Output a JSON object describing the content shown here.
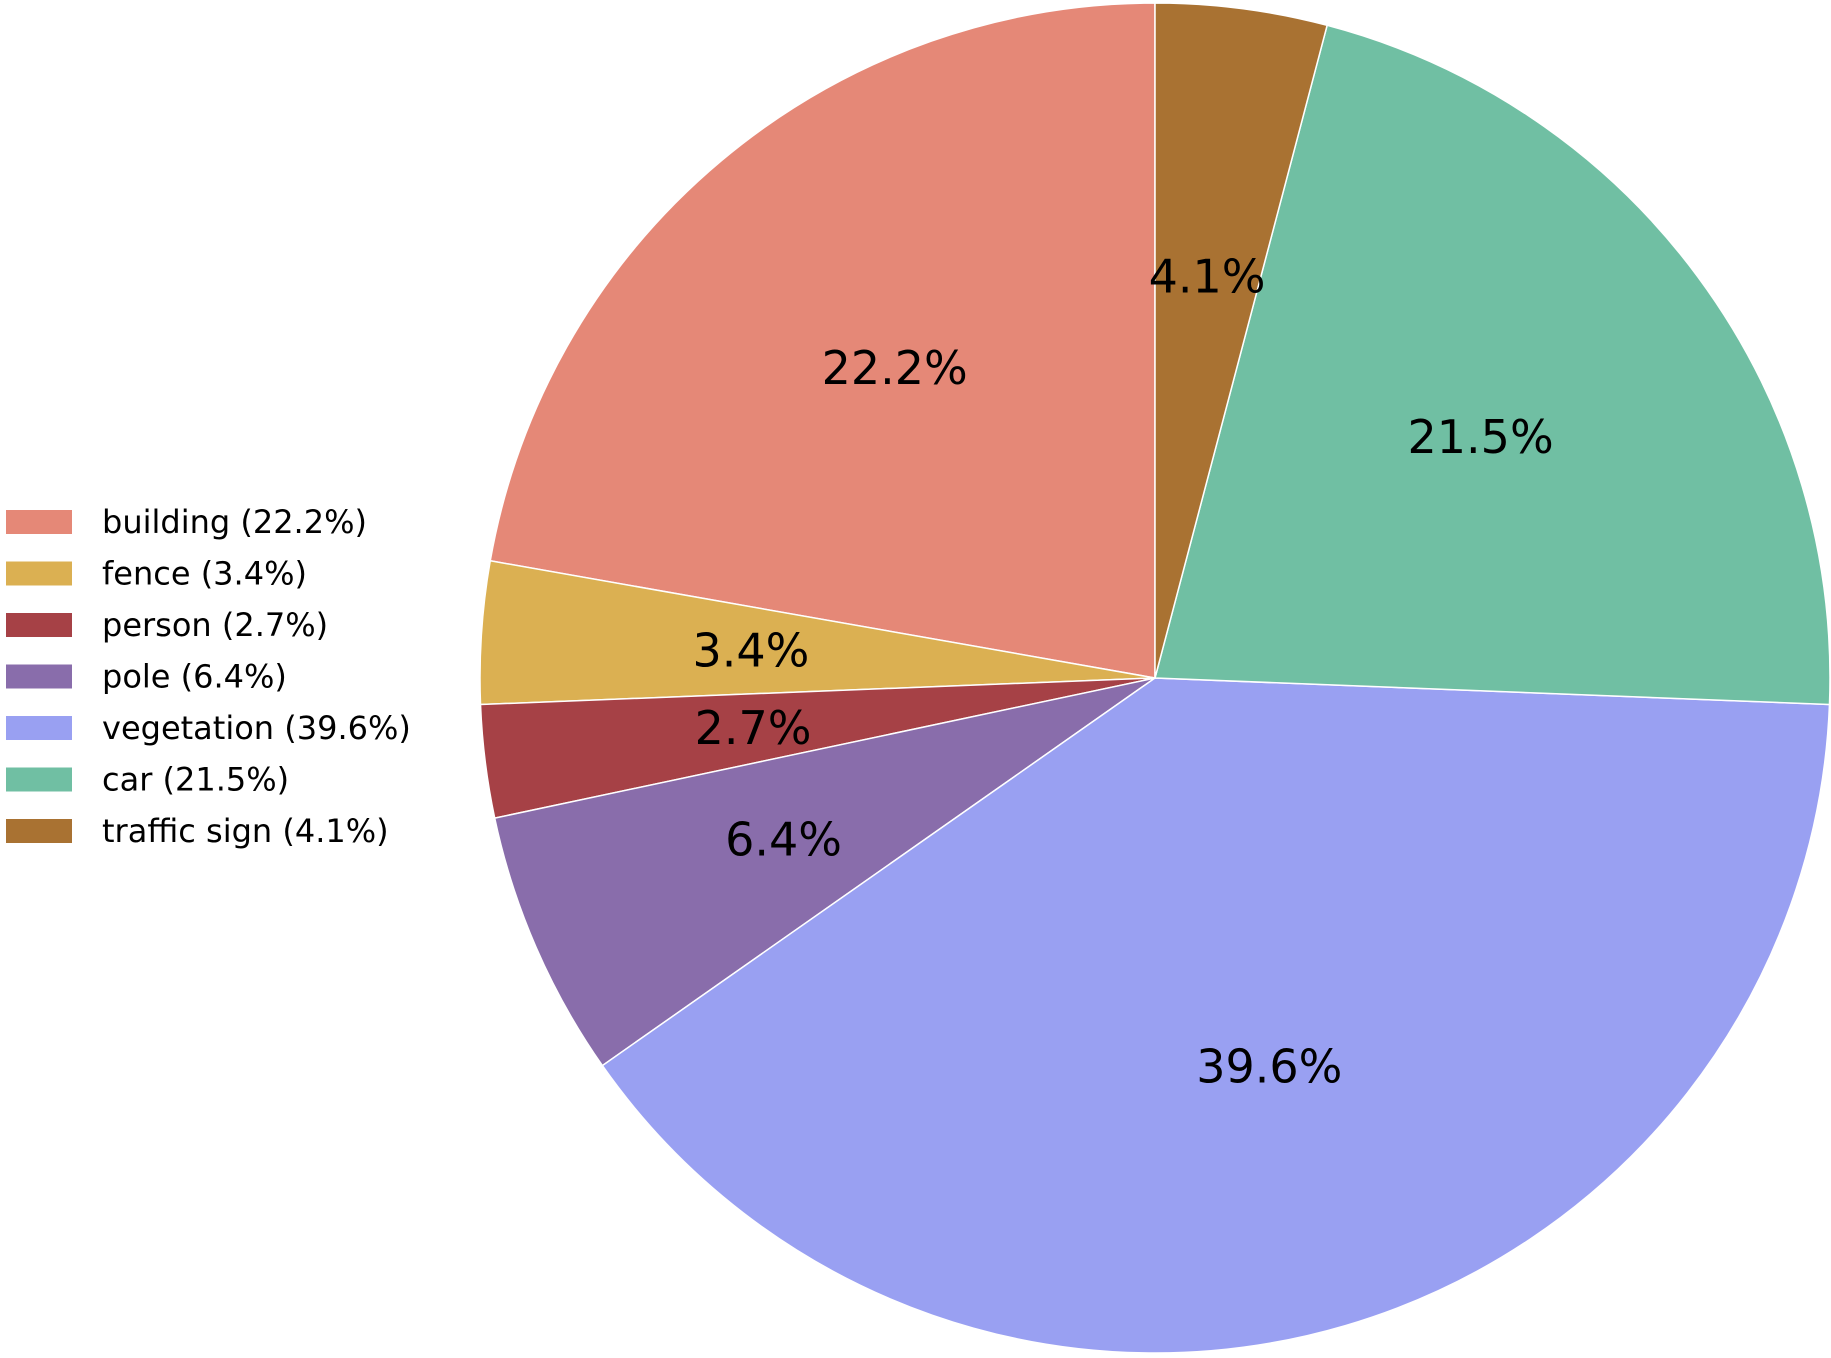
{
  "chart_data": {
    "type": "pie",
    "start_angle_deg": 90,
    "direction": "counterclockwise",
    "legend_placement": "left",
    "colors": [
      "#e58877",
      "#dbb052",
      "#a64146",
      "#896dab",
      "#99a0f2",
      "#70bfa3",
      "#a97232"
    ],
    "slices": [
      {
        "name": "building",
        "value": 22.2,
        "label": "22.2%",
        "legend": "building (22.2%)",
        "color": "#e58877"
      },
      {
        "name": "fence",
        "value": 3.4,
        "label": "3.4%",
        "legend": "fence (3.4%)",
        "color": "#dbb052"
      },
      {
        "name": "person",
        "value": 2.7,
        "label": "2.7%",
        "legend": "person (2.7%)",
        "color": "#a64146"
      },
      {
        "name": "pole",
        "value": 6.4,
        "label": "6.4%",
        "legend": "pole (6.4%)",
        "color": "#896dab"
      },
      {
        "name": "vegetation",
        "value": 39.6,
        "label": "39.6%",
        "legend": "vegetation (39.6%)",
        "color": "#99a0f2"
      },
      {
        "name": "car",
        "value": 21.5,
        "label": "21.5%",
        "legend": "car (21.5%)",
        "color": "#70bfa3"
      },
      {
        "name": "traffic sign",
        "value": 4.1,
        "label": "4.1%",
        "legend": "traffic sign (4.1%)",
        "color": "#a97232"
      }
    ]
  }
}
